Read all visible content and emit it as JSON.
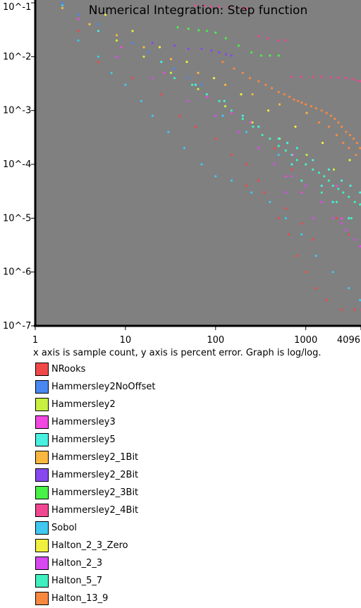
{
  "chart_data": {
    "type": "scatter",
    "title": "Numerical Integration: Step function",
    "xlabel": "",
    "ylabel": "",
    "x_scale": "log",
    "y_scale": "log",
    "xlim": [
      1,
      4096
    ],
    "ylim": [
      1e-07,
      0.1
    ],
    "x_ticks": [
      {
        "value": 1,
        "label": "1"
      },
      {
        "value": 10,
        "label": "10"
      },
      {
        "value": 100,
        "label": "100"
      },
      {
        "value": 1000,
        "label": "1000"
      },
      {
        "value": 4096,
        "label": "4096"
      }
    ],
    "y_ticks": [
      {
        "value": 0.1,
        "label": "10^-1"
      },
      {
        "value": 0.01,
        "label": "10^-2"
      },
      {
        "value": 0.001,
        "label": "10^-3"
      },
      {
        "value": 0.0001,
        "label": "10^-4"
      },
      {
        "value": 1e-05,
        "label": "10^-5"
      },
      {
        "value": 1e-06,
        "label": "10^-6"
      },
      {
        "value": 1e-07,
        "label": "10^-7"
      }
    ],
    "plot_background": "#808080",
    "grid": false,
    "legend_position": "below",
    "series": [
      {
        "name": "NRooks",
        "color": "#f04848",
        "points": [
          [
            3,
            0.03
          ],
          [
            5,
            0.008
          ],
          [
            12,
            0.004
          ],
          [
            25,
            0.002
          ],
          [
            40,
            0.0008
          ],
          [
            60,
            0.0005
          ],
          [
            100,
            0.0003
          ],
          [
            150,
            0.00015
          ],
          [
            220,
            0.0001
          ],
          [
            300,
            5e-05
          ],
          [
            400,
            2e-05
          ],
          [
            500,
            1e-05
          ],
          [
            650,
            5e-06
          ],
          [
            800,
            2e-06
          ],
          [
            1000,
            1e-06
          ],
          [
            1300,
            5e-07
          ],
          [
            1700,
            3e-07
          ],
          [
            2500,
            2e-07
          ],
          [
            3500,
            2e-07
          ],
          [
            220,
            4e-05
          ],
          [
            350,
            3e-05
          ],
          [
            600,
            1.5e-05
          ],
          [
            900,
            8e-06
          ],
          [
            1200,
            4e-06
          ],
          [
            450,
            0.0002
          ],
          [
            700,
            8e-05
          ],
          [
            1500,
            3e-05
          ],
          [
            2200,
            1e-05
          ],
          [
            3000,
            5e-06
          ],
          [
            4000,
            3e-06
          ]
        ]
      },
      {
        "name": "Hammersley2NoOffset",
        "color": "#4888f0",
        "points": [
          [
            2,
            0.1
          ],
          [
            3,
            0.06
          ],
          [
            5,
            0.04
          ],
          [
            8,
            0.025
          ],
          [
            12,
            0.018
          ],
          [
            18,
            0.012
          ],
          [
            25,
            0.008
          ],
          [
            35,
            0.006
          ],
          [
            50,
            0.004
          ],
          [
            70,
            0.003
          ]
        ]
      },
      {
        "name": "Hammersley2",
        "color": "#c8f040",
        "points": [
          [
            4,
            0.04
          ],
          [
            8,
            0.02
          ],
          [
            16,
            0.01
          ],
          [
            32,
            0.005
          ],
          [
            64,
            0.0025
          ],
          [
            128,
            0.0012
          ],
          [
            256,
            0.0006
          ],
          [
            512,
            0.0003
          ],
          [
            1024,
            0.00015
          ],
          [
            2048,
            8e-05
          ]
        ]
      },
      {
        "name": "Hammersley3",
        "color": "#f048e0",
        "points": [
          [
            3,
            0.05
          ],
          [
            9,
            0.015
          ],
          [
            27,
            0.005
          ],
          [
            81,
            0.0018
          ],
          [
            150,
            0.0009
          ],
          [
            243,
            0.0006
          ],
          [
            400,
            0.0003
          ],
          [
            729,
            0.00015
          ],
          [
            1200,
            8e-05
          ],
          [
            2187,
            4e-05
          ],
          [
            300,
            0.0002
          ],
          [
            600,
            6e-05
          ],
          [
            900,
            3e-05
          ],
          [
            1500,
            2e-05
          ],
          [
            2500,
            1e-05
          ]
        ]
      },
      {
        "name": "Hammersley5",
        "color": "#48f0e0",
        "points": [
          [
            5,
            0.03
          ],
          [
            25,
            0.008
          ],
          [
            60,
            0.003
          ],
          [
            125,
            0.0015
          ],
          [
            200,
            0.0008
          ],
          [
            300,
            0.0005
          ],
          [
            500,
            0.0003
          ],
          [
            625,
            0.00025
          ],
          [
            800,
            0.0002
          ],
          [
            1200,
            0.00012
          ],
          [
            1800,
            8e-05
          ],
          [
            2500,
            5e-05
          ],
          [
            3125,
            4e-05
          ],
          [
            4000,
            3e-05
          ],
          [
            700,
            0.0001
          ],
          [
            1500,
            4e-05
          ],
          [
            2000,
            2e-05
          ],
          [
            3000,
            1e-05
          ]
        ]
      },
      {
        "name": "Hammersley2_1Bit",
        "color": "#f8b840",
        "points": [
          [
            2,
            0.08
          ],
          [
            4,
            0.04
          ],
          [
            8,
            0.025
          ],
          [
            16,
            0.015
          ],
          [
            32,
            0.009
          ],
          [
            64,
            0.005
          ],
          [
            128,
            0.003
          ],
          [
            256,
            0.002
          ],
          [
            512,
            0.0013
          ],
          [
            1024,
            0.0009
          ]
        ]
      },
      {
        "name": "Hammersley2_2Bit",
        "color": "#8848f0",
        "points": [
          [
            20,
            0.018
          ],
          [
            35,
            0.016
          ],
          [
            50,
            0.014
          ],
          [
            70,
            0.014
          ],
          [
            90,
            0.013
          ],
          [
            110,
            0.012
          ],
          [
            130,
            0.011
          ],
          [
            150,
            0.0105
          ]
        ]
      },
      {
        "name": "Hammersley2_3Bit",
        "color": "#48f048",
        "points": [
          [
            38,
            0.035
          ],
          [
            50,
            0.033
          ],
          [
            65,
            0.031
          ],
          [
            80,
            0.03
          ],
          [
            100,
            0.028
          ],
          [
            130,
            0.022
          ],
          [
            180,
            0.016
          ],
          [
            250,
            0.012
          ],
          [
            320,
            0.0105
          ],
          [
            400,
            0.0105
          ],
          [
            500,
            0.0105
          ]
        ]
      },
      {
        "name": "Hammersley2_4Bit",
        "color": "#f04890",
        "points": [
          [
            60,
            0.09
          ],
          [
            75,
            0.088
          ],
          [
            90,
            0.085
          ],
          [
            110,
            0.084
          ],
          [
            140,
            0.082
          ],
          [
            170,
            0.08
          ],
          [
            200,
            0.08
          ],
          [
            220,
            0.079
          ],
          [
            300,
            0.024
          ],
          [
            380,
            0.022
          ],
          [
            500,
            0.02
          ],
          [
            600,
            0.02
          ],
          [
            700,
            0.0042
          ],
          [
            900,
            0.0042
          ],
          [
            1200,
            0.0042
          ],
          [
            1500,
            0.0042
          ],
          [
            1900,
            0.0041
          ],
          [
            2300,
            0.0041
          ],
          [
            2800,
            0.004
          ],
          [
            3300,
            0.0038
          ],
          [
            3800,
            0.0036
          ],
          [
            4096,
            0.0035
          ]
        ]
      },
      {
        "name": "Sobol",
        "color": "#40c8f0",
        "points": [
          [
            2,
            0.09
          ],
          [
            3,
            0.02
          ],
          [
            5,
            0.01
          ],
          [
            7,
            0.005
          ],
          [
            10,
            0.003
          ],
          [
            15,
            0.0015
          ],
          [
            20,
            0.0008
          ],
          [
            30,
            0.0004
          ],
          [
            45,
            0.0002
          ],
          [
            70,
            0.0001
          ],
          [
            100,
            6e-05
          ],
          [
            150,
            5e-05
          ],
          [
            250,
            3e-05
          ],
          [
            400,
            2e-05
          ],
          [
            600,
            1e-05
          ],
          [
            900,
            5e-06
          ],
          [
            1300,
            2e-06
          ],
          [
            2000,
            1e-06
          ],
          [
            3000,
            5e-07
          ],
          [
            4000,
            3e-07
          ],
          [
            120,
            0.0008
          ],
          [
            220,
            0.0004
          ],
          [
            500,
            0.00015
          ]
        ]
      },
      {
        "name": "Halton_2_3_Zero",
        "color": "#f0f040",
        "points": [
          [
            3,
            0.12
          ],
          [
            6,
            0.06
          ],
          [
            12,
            0.03
          ],
          [
            24,
            0.015
          ],
          [
            48,
            0.008
          ],
          [
            96,
            0.004
          ],
          [
            192,
            0.002
          ],
          [
            384,
            0.001
          ],
          [
            768,
            0.0005
          ],
          [
            1536,
            0.00025
          ],
          [
            3072,
            0.00012
          ]
        ]
      },
      {
        "name": "Halton_2_3",
        "color": "#d848f0",
        "points": [
          [
            8,
            0.01
          ],
          [
            20,
            0.004
          ],
          [
            50,
            0.0015
          ],
          [
            100,
            0.0008
          ],
          [
            180,
            0.0004
          ],
          [
            300,
            0.0002
          ],
          [
            450,
            0.0001
          ],
          [
            700,
            6e-05
          ],
          [
            1000,
            4e-05
          ],
          [
            1500,
            2e-05
          ],
          [
            2000,
            1e-05
          ],
          [
            2800,
            6e-06
          ],
          [
            3500,
            4e-06
          ],
          [
            4000,
            3e-06
          ],
          [
            600,
            3e-05
          ],
          [
            1200,
            1e-05
          ],
          [
            2500,
            8e-06
          ]
        ]
      },
      {
        "name": "Halton_5_7",
        "color": "#40f0c0",
        "points": [
          [
            35,
            0.004
          ],
          [
            55,
            0.003
          ],
          [
            80,
            0.002
          ],
          [
            110,
            0.0015
          ],
          [
            150,
            0.001
          ],
          [
            200,
            0.0007
          ],
          [
            260,
            0.0005
          ],
          [
            330,
            0.00035
          ],
          [
            400,
            0.0003
          ],
          [
            500,
            0.00022
          ],
          [
            600,
            0.00018
          ],
          [
            700,
            0.00015
          ],
          [
            800,
            0.00012
          ],
          [
            1000,
            0.0001
          ],
          [
            1200,
            8e-05
          ],
          [
            1400,
            7e-05
          ],
          [
            1600,
            6e-05
          ],
          [
            1800,
            5e-05
          ],
          [
            2000,
            4e-05
          ],
          [
            2300,
            3.5e-05
          ],
          [
            2600,
            3e-05
          ],
          [
            3000,
            2.5e-05
          ],
          [
            3500,
            2e-05
          ],
          [
            4000,
            1.8e-05
          ],
          [
            900,
            5e-05
          ],
          [
            1500,
            3e-05
          ],
          [
            2200,
            2e-05
          ],
          [
            3200,
            1e-05
          ]
        ]
      },
      {
        "name": "Halton_13_9",
        "color": "#f88840",
        "points": [
          [
            120,
            0.008
          ],
          [
            160,
            0.006
          ],
          [
            200,
            0.005
          ],
          [
            240,
            0.004
          ],
          [
            300,
            0.0035
          ],
          [
            360,
            0.003
          ],
          [
            420,
            0.0026
          ],
          [
            500,
            0.0022
          ],
          [
            580,
            0.002
          ],
          [
            660,
            0.0018
          ],
          [
            740,
            0.0016
          ],
          [
            820,
            0.0015
          ],
          [
            900,
            0.0014
          ],
          [
            1000,
            0.0013
          ],
          [
            1150,
            0.0012
          ],
          [
            1300,
            0.0011
          ],
          [
            1500,
            0.001
          ],
          [
            1700,
            0.0009
          ],
          [
            1900,
            0.0008
          ],
          [
            2100,
            0.0007
          ],
          [
            2300,
            0.0006
          ],
          [
            2500,
            0.0005
          ],
          [
            2800,
            0.0004
          ],
          [
            3100,
            0.00035
          ],
          [
            3400,
            0.0003
          ],
          [
            3700,
            0.00025
          ],
          [
            4000,
            0.0002
          ],
          [
            1400,
            0.0006
          ],
          [
            1800,
            0.0005
          ],
          [
            2200,
            0.00035
          ],
          [
            2600,
            0.00025
          ],
          [
            3000,
            0.0002
          ],
          [
            3600,
            0.00015
          ]
        ]
      }
    ]
  },
  "caption": "x axis is sample count, y axis is percent error. Graph is log/log."
}
